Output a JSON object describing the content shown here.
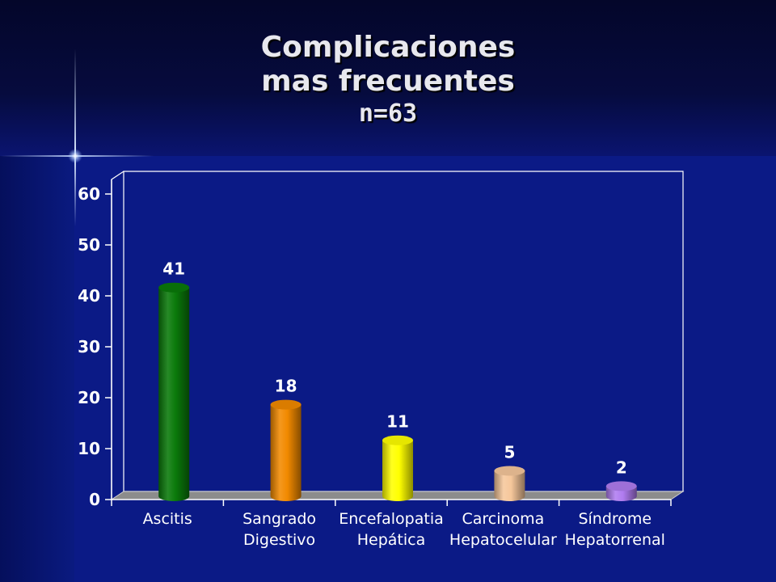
{
  "title": {
    "line1": "Complicaciones",
    "line2": "mas frecuentes",
    "line3": "n=63"
  },
  "chart_data": {
    "type": "bar",
    "categories": [
      [
        "Ascitis"
      ],
      [
        "Sangrado",
        "Digestivo"
      ],
      [
        "Encefalopatia",
        "Hepática"
      ],
      [
        "Carcinoma",
        "Hepatocelular"
      ],
      [
        "Síndrome",
        "Hepatorrenal"
      ]
    ],
    "values": [
      41,
      18,
      11,
      5,
      2
    ],
    "data_labels": [
      "41",
      "18",
      "11",
      "5",
      "2"
    ],
    "colors": [
      "#0a7a0a",
      "#f28a00",
      "#ffff00",
      "#f6c79b",
      "#b07cf0"
    ],
    "ylim": [
      0,
      60
    ],
    "yticks": [
      0,
      10,
      20,
      30,
      40,
      50,
      60
    ],
    "grid": false,
    "legend": "none"
  }
}
